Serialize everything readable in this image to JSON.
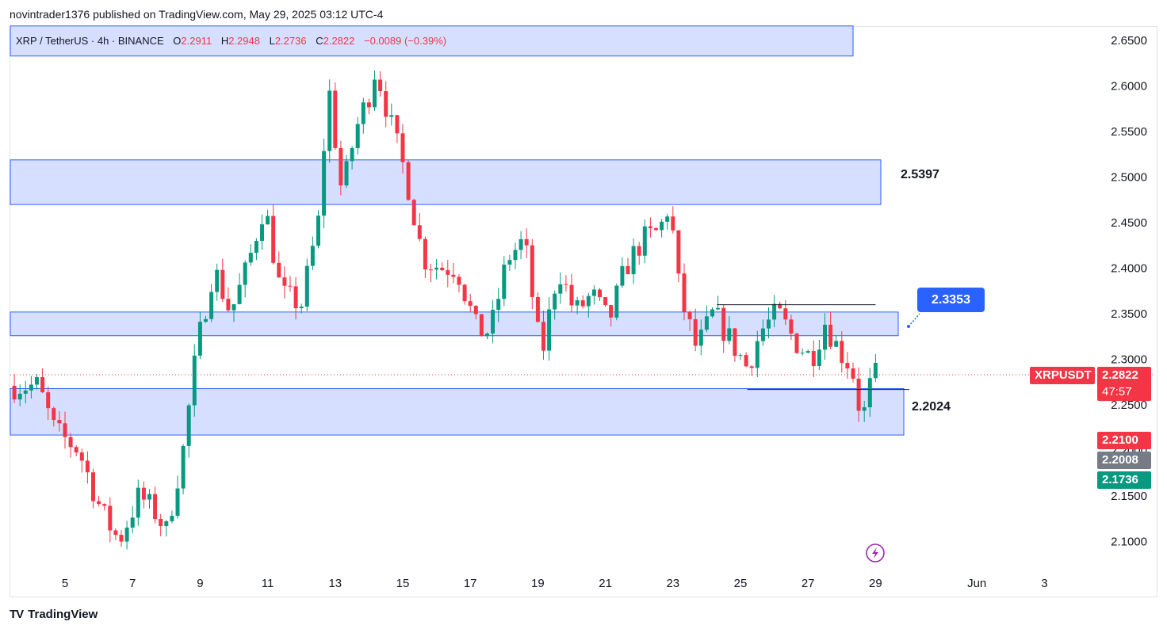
{
  "header": {
    "published": "novintrader1376 published on TradingView.com, May 29, 2025 03:12 UTC-4"
  },
  "legend": {
    "symbol": "XRP / TetherUS · 4h · BINANCE",
    "o_label": "O",
    "o_value": "2.2911",
    "h_label": "H",
    "h_value": "2.2948",
    "l_label": "L",
    "l_value": "2.2736",
    "c_label": "C",
    "c_value": "2.2822",
    "change": "−0.0089 (−0.39%)"
  },
  "price_tags": {
    "symbol": "XRPUSDT",
    "last": "2.2822",
    "countdown": "47:57",
    "high_tag": "2.2100",
    "mid_tag": "2.2008",
    "low_tag": "2.1736"
  },
  "annotations": {
    "zone_2": "2.5397",
    "callout": "2.3353",
    "zone_4": "2.2024"
  },
  "footer": {
    "brand": "TradingView",
    "logo": "TV"
  },
  "colors": {
    "up": "#089981",
    "down": "#f23645",
    "zone_fill": "#d1dcff",
    "zone_border": "#2962ff",
    "callout": "#2962ff"
  },
  "chart_data": {
    "type": "candlestick",
    "ylim": [
      2.06,
      2.66
    ],
    "y_ticks": [
      "2.6500",
      "2.6000",
      "2.5500",
      "2.5000",
      "2.4500",
      "2.4000",
      "2.3500",
      "2.3000",
      "2.2500",
      "2.2000",
      "2.1500",
      "2.1000"
    ],
    "x_ticks": [
      {
        "label": "5",
        "day": 5
      },
      {
        "label": "7",
        "day": 7
      },
      {
        "label": "9",
        "day": 9
      },
      {
        "label": "11",
        "day": 11
      },
      {
        "label": "13",
        "day": 13
      },
      {
        "label": "15",
        "day": 15
      },
      {
        "label": "17",
        "day": 17
      },
      {
        "label": "19",
        "day": 19
      },
      {
        "label": "21",
        "day": 21
      },
      {
        "label": "23",
        "day": 23
      },
      {
        "label": "25",
        "day": 25
      },
      {
        "label": "27",
        "day": 27
      },
      {
        "label": "29",
        "day": 29
      },
      {
        "label": "Jun",
        "day": 32
      },
      {
        "label": "3",
        "day": 34
      }
    ],
    "zones": [
      {
        "low": 2.632,
        "high": 2.665
      },
      {
        "low": 2.469,
        "high": 2.518
      },
      {
        "low": 2.325,
        "high": 2.351
      },
      {
        "low": 2.216,
        "high": 2.267
      }
    ],
    "lines": [
      {
        "from_day": 24.3,
        "to_day": 29.0,
        "price": 2.359
      },
      {
        "from_day": 25.2,
        "to_day": 30.0,
        "price": 2.266
      }
    ],
    "last_price": 2.2822,
    "waypoints": [
      [
        3.5,
        2.27
      ],
      [
        4.2,
        2.27
      ],
      [
        4.7,
        2.22
      ],
      [
        5.4,
        2.2
      ],
      [
        6.1,
        2.13
      ],
      [
        6.6,
        2.1
      ],
      [
        7.2,
        2.15
      ],
      [
        7.7,
        2.13
      ],
      [
        8.0,
        2.11
      ],
      [
        8.5,
        2.2
      ],
      [
        8.9,
        2.31
      ],
      [
        9.4,
        2.4
      ],
      [
        9.9,
        2.35
      ],
      [
        10.4,
        2.4
      ],
      [
        10.9,
        2.47
      ],
      [
        11.4,
        2.37
      ],
      [
        12.0,
        2.36
      ],
      [
        12.5,
        2.45
      ],
      [
        12.8,
        2.6
      ],
      [
        13.2,
        2.48
      ],
      [
        13.6,
        2.55
      ],
      [
        14.0,
        2.59
      ],
      [
        14.2,
        2.62
      ],
      [
        14.7,
        2.55
      ],
      [
        15.1,
        2.5
      ],
      [
        15.6,
        2.41
      ],
      [
        16.1,
        2.4
      ],
      [
        16.6,
        2.4
      ],
      [
        17.2,
        2.33
      ],
      [
        17.6,
        2.33
      ],
      [
        18.1,
        2.41
      ],
      [
        18.6,
        2.43
      ],
      [
        19.1,
        2.3
      ],
      [
        19.6,
        2.4
      ],
      [
        20.1,
        2.35
      ],
      [
        20.6,
        2.37
      ],
      [
        21.1,
        2.34
      ],
      [
        21.6,
        2.4
      ],
      [
        22.1,
        2.43
      ],
      [
        22.6,
        2.44
      ],
      [
        22.9,
        2.47
      ],
      [
        23.2,
        2.37
      ],
      [
        23.7,
        2.31
      ],
      [
        24.2,
        2.35
      ],
      [
        24.7,
        2.32
      ],
      [
        25.2,
        2.29
      ],
      [
        25.6,
        2.33
      ],
      [
        26.1,
        2.35
      ],
      [
        26.6,
        2.32
      ],
      [
        27.1,
        2.3
      ],
      [
        27.5,
        2.34
      ],
      [
        27.9,
        2.31
      ],
      [
        28.3,
        2.29
      ],
      [
        28.6,
        2.23
      ],
      [
        28.9,
        2.28
      ],
      [
        29.1,
        2.2822
      ]
    ]
  }
}
